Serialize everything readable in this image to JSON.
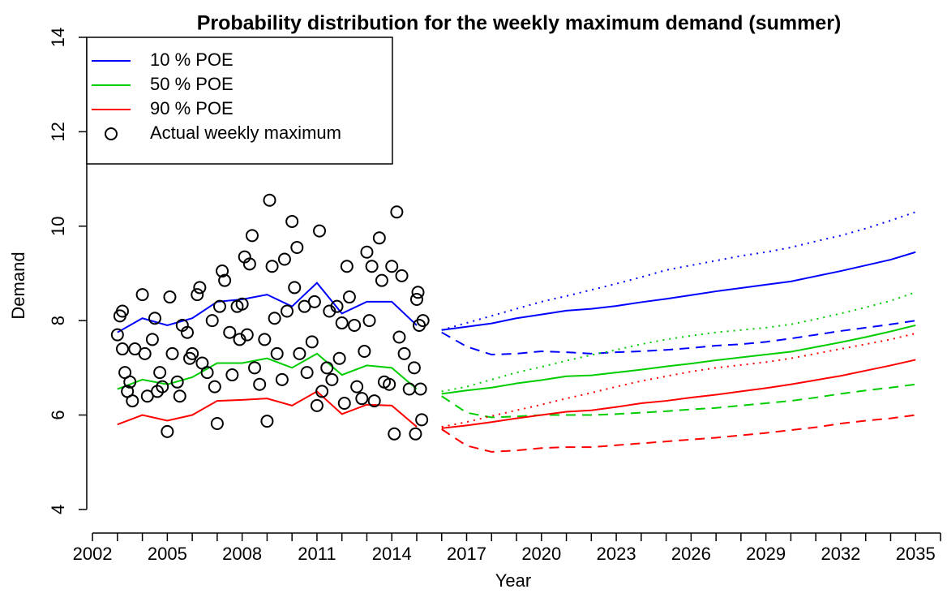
{
  "chart_data": {
    "type": "line",
    "title": "Probability distribution for the weekly maximum demand (summer)",
    "xlabel": "Year",
    "ylabel": "Demand",
    "xlim": [
      2001.77,
      2036.0
    ],
    "ylim": [
      3.5,
      14
    ],
    "xticks": [
      2002,
      2005,
      2008,
      2011,
      2014,
      2017,
      2020,
      2023,
      2026,
      2029,
      2032,
      2035
    ],
    "xminorticks": [
      2003,
      2004,
      2006,
      2007,
      2009,
      2010,
      2012,
      2013,
      2015,
      2016,
      2018,
      2019,
      2021,
      2022,
      2024,
      2025,
      2027,
      2028,
      2030,
      2031,
      2033,
      2034,
      2036
    ],
    "yticks": [
      4,
      6,
      8,
      10,
      12,
      14
    ],
    "legend": "top-left",
    "series": [
      {
        "name": "10 % POE",
        "color": "#0000ff",
        "x": [
          2003,
          2004,
          2005,
          2006,
          2007,
          2008,
          2009,
          2010,
          2011,
          2012,
          2013,
          2014,
          2015
        ],
        "values": [
          7.75,
          8.05,
          7.9,
          8.05,
          8.4,
          8.45,
          8.55,
          8.3,
          8.8,
          8.15,
          8.4,
          8.4,
          7.9
        ]
      },
      {
        "name": "50 % POE",
        "color": "#00cd00",
        "x": [
          2003,
          2004,
          2005,
          2006,
          2007,
          2008,
          2009,
          2010,
          2011,
          2012,
          2013,
          2014,
          2015
        ],
        "values": [
          6.55,
          6.75,
          6.65,
          6.8,
          7.1,
          7.1,
          7.2,
          7.0,
          7.3,
          6.85,
          7.05,
          7.0,
          6.55
        ]
      },
      {
        "name": "90 % POE",
        "color": "#ff0000",
        "x": [
          2003,
          2004,
          2005,
          2006,
          2007,
          2008,
          2009,
          2010,
          2011,
          2012,
          2013,
          2014,
          2015
        ],
        "values": [
          5.8,
          6.0,
          5.88,
          6.0,
          6.3,
          6.32,
          6.35,
          6.2,
          6.5,
          6.02,
          6.22,
          6.2,
          5.75
        ]
      },
      {
        "name": "Actual weekly maximum",
        "color": "#000000",
        "marker": "circle",
        "x": [
          2003.0,
          2003.1,
          2003.2,
          2003.3,
          2003.4,
          2003.5,
          2003.6,
          2003.7,
          2003.2,
          2004.0,
          2004.1,
          2004.2,
          2004.4,
          2004.5,
          2004.6,
          2004.7,
          2004.8,
          2005.0,
          2005.1,
          2005.2,
          2005.4,
          2005.5,
          2005.6,
          2005.8,
          2005.9,
          2006.0,
          2006.2,
          2006.3,
          2006.4,
          2006.6,
          2006.8,
          2006.9,
          2007.0,
          2007.1,
          2007.2,
          2007.3,
          2007.5,
          2007.6,
          2007.8,
          2007.9,
          2008.0,
          2008.1,
          2008.2,
          2008.3,
          2008.4,
          2008.5,
          2008.7,
          2008.9,
          2009.0,
          2009.1,
          2009.2,
          2009.3,
          2009.4,
          2009.6,
          2009.7,
          2009.8,
          2010.0,
          2010.1,
          2010.2,
          2010.3,
          2010.5,
          2010.6,
          2010.8,
          2010.9,
          2011.0,
          2011.1,
          2011.2,
          2011.4,
          2011.5,
          2011.6,
          2011.8,
          2011.9,
          2012.0,
          2012.1,
          2012.2,
          2012.3,
          2012.5,
          2012.6,
          2012.8,
          2012.9,
          2013.0,
          2013.1,
          2013.2,
          2013.3,
          2013.5,
          2013.6,
          2013.7,
          2013.9,
          2014.0,
          2014.1,
          2014.2,
          2014.3,
          2014.4,
          2014.5,
          2014.7,
          2014.9,
          2014.95,
          2015.0,
          2015.05,
          2015.1,
          2015.15,
          2015.2,
          2015.25
        ],
        "values": [
          7.7,
          8.1,
          7.4,
          6.9,
          6.5,
          6.7,
          6.3,
          7.4,
          8.2,
          8.55,
          7.3,
          6.4,
          7.6,
          8.05,
          6.5,
          6.9,
          6.6,
          5.65,
          8.5,
          7.3,
          6.7,
          6.4,
          7.9,
          7.75,
          7.2,
          7.3,
          8.55,
          8.7,
          7.1,
          6.9,
          8.0,
          6.6,
          5.82,
          8.3,
          9.05,
          8.85,
          7.75,
          6.85,
          8.3,
          7.6,
          8.35,
          9.35,
          7.7,
          9.2,
          9.8,
          7.0,
          6.65,
          7.6,
          5.87,
          10.55,
          9.15,
          8.05,
          7.3,
          6.75,
          9.3,
          8.2,
          10.1,
          8.7,
          9.55,
          7.3,
          8.3,
          6.9,
          7.55,
          8.4,
          6.2,
          9.9,
          6.5,
          7.0,
          8.2,
          6.75,
          8.3,
          7.2,
          7.95,
          6.25,
          9.15,
          8.5,
          7.9,
          6.6,
          6.35,
          7.35,
          9.45,
          8.0,
          9.15,
          6.3,
          9.75,
          8.85,
          6.7,
          6.65,
          9.15,
          5.6,
          10.3,
          7.65,
          8.95,
          7.3,
          6.55,
          7.0,
          5.6,
          8.45,
          8.6,
          7.9,
          6.55,
          5.9,
          8.0
        ]
      }
    ],
    "forecast": [
      {
        "color": "#0000ff",
        "style": "solid",
        "x": [
          2016,
          2017,
          2018,
          2019,
          2020,
          2021,
          2022,
          2023,
          2024,
          2025,
          2026,
          2027,
          2028,
          2029,
          2030,
          2031,
          2032,
          2033,
          2034,
          2035
        ],
        "values": [
          7.8,
          7.87,
          7.94,
          8.05,
          8.13,
          8.21,
          8.25,
          8.31,
          8.39,
          8.46,
          8.54,
          8.62,
          8.69,
          8.76,
          8.83,
          8.94,
          9.05,
          9.17,
          9.29,
          9.45
        ]
      },
      {
        "color": "#0000ff",
        "style": "dotted",
        "x": [
          2016,
          2017,
          2018,
          2019,
          2020,
          2021,
          2022,
          2023,
          2024,
          2025,
          2026,
          2027,
          2028,
          2029,
          2030,
          2031,
          2032,
          2033,
          2034,
          2035
        ],
        "values": [
          7.8,
          7.95,
          8.1,
          8.25,
          8.4,
          8.52,
          8.65,
          8.78,
          8.92,
          9.07,
          9.17,
          9.27,
          9.37,
          9.45,
          9.55,
          9.68,
          9.8,
          9.95,
          10.12,
          10.3
        ]
      },
      {
        "color": "#0000ff",
        "style": "dashed",
        "x": [
          2016,
          2017,
          2018,
          2019,
          2020,
          2021,
          2022,
          2023,
          2024,
          2025,
          2026,
          2027,
          2028,
          2029,
          2030,
          2031,
          2032,
          2033,
          2034,
          2035
        ],
        "values": [
          7.75,
          7.45,
          7.28,
          7.3,
          7.35,
          7.33,
          7.3,
          7.33,
          7.35,
          7.38,
          7.42,
          7.47,
          7.5,
          7.55,
          7.62,
          7.7,
          7.78,
          7.85,
          7.92,
          8.0
        ]
      },
      {
        "color": "#00cd00",
        "style": "solid",
        "x": [
          2016,
          2017,
          2018,
          2019,
          2020,
          2021,
          2022,
          2023,
          2024,
          2025,
          2026,
          2027,
          2028,
          2029,
          2030,
          2031,
          2032,
          2033,
          2034,
          2035
        ],
        "values": [
          6.45,
          6.52,
          6.58,
          6.67,
          6.74,
          6.82,
          6.84,
          6.9,
          6.96,
          7.03,
          7.09,
          7.16,
          7.22,
          7.28,
          7.34,
          7.44,
          7.54,
          7.65,
          7.77,
          7.9
        ]
      },
      {
        "color": "#00cd00",
        "style": "dotted",
        "x": [
          2016,
          2017,
          2018,
          2019,
          2020,
          2021,
          2022,
          2023,
          2024,
          2025,
          2026,
          2027,
          2028,
          2029,
          2030,
          2031,
          2032,
          2033,
          2034,
          2035
        ],
        "values": [
          6.5,
          6.6,
          6.75,
          6.9,
          7.02,
          7.15,
          7.27,
          7.38,
          7.5,
          7.6,
          7.68,
          7.75,
          7.8,
          7.85,
          7.92,
          8.03,
          8.15,
          8.28,
          8.42,
          8.6
        ]
      },
      {
        "color": "#00cd00",
        "style": "dashed",
        "x": [
          2016,
          2017,
          2018,
          2019,
          2020,
          2021,
          2022,
          2023,
          2024,
          2025,
          2026,
          2027,
          2028,
          2029,
          2030,
          2031,
          2032,
          2033,
          2034,
          2035
        ],
        "values": [
          6.4,
          6.05,
          5.95,
          5.97,
          6.0,
          6.0,
          6.0,
          6.02,
          6.05,
          6.08,
          6.12,
          6.15,
          6.2,
          6.25,
          6.3,
          6.37,
          6.45,
          6.52,
          6.58,
          6.65
        ]
      },
      {
        "color": "#ff0000",
        "style": "solid",
        "x": [
          2016,
          2017,
          2018,
          2019,
          2020,
          2021,
          2022,
          2023,
          2024,
          2025,
          2026,
          2027,
          2028,
          2029,
          2030,
          2031,
          2032,
          2033,
          2034,
          2035
        ],
        "values": [
          5.72,
          5.78,
          5.85,
          5.93,
          6.0,
          6.07,
          6.1,
          6.17,
          6.25,
          6.3,
          6.37,
          6.43,
          6.5,
          6.57,
          6.65,
          6.74,
          6.83,
          6.94,
          7.05,
          7.17
        ]
      },
      {
        "color": "#ff0000",
        "style": "dotted",
        "x": [
          2016,
          2017,
          2018,
          2019,
          2020,
          2021,
          2022,
          2023,
          2024,
          2025,
          2026,
          2027,
          2028,
          2029,
          2030,
          2031,
          2032,
          2033,
          2034,
          2035
        ],
        "values": [
          5.75,
          5.85,
          5.98,
          6.1,
          6.22,
          6.35,
          6.47,
          6.6,
          6.72,
          6.82,
          6.92,
          7.0,
          7.06,
          7.12,
          7.2,
          7.3,
          7.4,
          7.5,
          7.6,
          7.73
        ]
      },
      {
        "color": "#ff0000",
        "style": "dashed",
        "x": [
          2016,
          2017,
          2018,
          2019,
          2020,
          2021,
          2022,
          2023,
          2024,
          2025,
          2026,
          2027,
          2028,
          2029,
          2030,
          2031,
          2032,
          2033,
          2034,
          2035
        ],
        "values": [
          5.7,
          5.35,
          5.22,
          5.25,
          5.3,
          5.32,
          5.32,
          5.36,
          5.4,
          5.44,
          5.48,
          5.52,
          5.57,
          5.62,
          5.68,
          5.74,
          5.82,
          5.88,
          5.93,
          6.0
        ]
      }
    ]
  }
}
